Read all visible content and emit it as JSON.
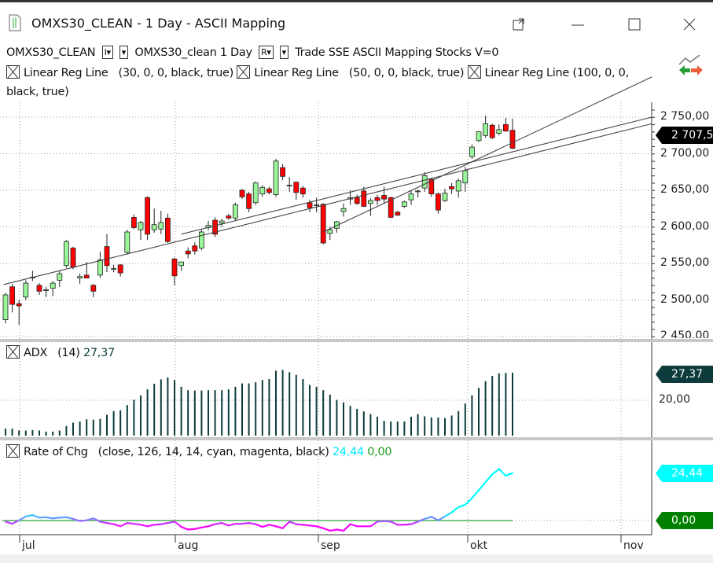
{
  "window": {
    "title": "OMXS30_CLEAN - 1 Day - ASCII Mapping",
    "popout_icon": "popout-icon",
    "minimize_icon": "minimize-icon",
    "maximize_icon": "maximize-icon",
    "close_icon": "close-icon"
  },
  "toolbar": {
    "symbol": "OMXS30_CLEAN",
    "dd1": "I▾",
    "dd2": "▾",
    "series": "OMXS30_clean",
    "period": "1 Day",
    "dd3": "R▾",
    "dd4": "▾",
    "info": "Trade  SSE  ASCII Mapping  Stocks  V=0"
  },
  "indicators": [
    {
      "label": "Linear Reg Line",
      "params": "(30,  0,  0,  black,  true)"
    },
    {
      "label": "Linear Reg Line",
      "params": "(50,  0,  0,  black,  true)"
    },
    {
      "label": "Linear Reg Line",
      "params": "(100,  0,  0,  black,  true)"
    }
  ],
  "adx": {
    "label": "ADX",
    "params": "(14)",
    "value": "27,37",
    "axis_label": "20,00",
    "tag": "27,37"
  },
  "roc": {
    "label": "Rate of Chg",
    "params": "(close,  126,  14,  14,  cyan,  magenta,  black)",
    "value1": "24,44",
    "value2": "0,00",
    "tag1": "24,44",
    "tag2": "0,00"
  },
  "price_tag": "2 707,50",
  "price_axis": [
    "2 750,00",
    "2 700,00",
    "2 650,00",
    "2 600,00",
    "2 550,00",
    "2 500,00",
    "2 450,00"
  ],
  "months": [
    "jul",
    "aug",
    "sep",
    "okt",
    "nov"
  ],
  "colors": {
    "up": "#98f598",
    "down": "#ff0000",
    "adx": "#0e3b3b",
    "roc_pos": "#00ffff",
    "roc_neg": "#ff00ff",
    "zero": "#4caf50",
    "price_tag": "#000000",
    "roc_tag": "#00ffff",
    "zero_tag": "#008000"
  },
  "chart_data": {
    "type": "candlestick",
    "title": "OMXS30_CLEAN - 1 Day",
    "price_levels": [
      2750,
      2700,
      2650,
      2600,
      2550,
      2500,
      2450
    ],
    "ylim": [
      2450,
      2800
    ],
    "last_close": 2707.5,
    "candles": [
      [
        2473,
        2510,
        2468,
        2507
      ],
      [
        2518,
        2522,
        2483,
        2494
      ],
      [
        2495,
        2500,
        2466,
        2492
      ],
      [
        2504,
        2527,
        2500,
        2523
      ],
      [
        2531,
        2540,
        2526,
        2531
      ],
      [
        2520,
        2523,
        2507,
        2512
      ],
      [
        2514,
        2518,
        2504,
        2514
      ],
      [
        2516,
        2526,
        2505,
        2523
      ],
      [
        2527,
        2540,
        2518,
        2536
      ],
      [
        2547,
        2582,
        2544,
        2580
      ],
      [
        2571,
        2573,
        2542,
        2545
      ],
      [
        2530,
        2536,
        2522,
        2532
      ],
      [
        2534,
        2552,
        2530,
        2530
      ],
      [
        2520,
        2522,
        2504,
        2512
      ],
      [
        2534,
        2566,
        2530,
        2555
      ],
      [
        2573,
        2590,
        2538,
        2547
      ],
      [
        2543,
        2548,
        2538,
        2543
      ],
      [
        2548,
        2549,
        2532,
        2537
      ],
      [
        2565,
        2596,
        2562,
        2593
      ],
      [
        2613,
        2617,
        2597,
        2599
      ],
      [
        2596,
        2608,
        2582,
        2606
      ],
      [
        2640,
        2642,
        2582,
        2590
      ],
      [
        2596,
        2625,
        2592,
        2603
      ],
      [
        2597,
        2622,
        2590,
        2606
      ],
      [
        2612,
        2618,
        2578,
        2580
      ],
      [
        2556,
        2558,
        2520,
        2533
      ],
      [
        2547,
        2552,
        2540,
        2552
      ],
      [
        2567,
        2572,
        2557,
        2563
      ],
      [
        2574,
        2579,
        2562,
        2567
      ],
      [
        2571,
        2596,
        2568,
        2593
      ],
      [
        2599,
        2608,
        2595,
        2602
      ],
      [
        2609,
        2613,
        2586,
        2590
      ],
      [
        2605,
        2611,
        2600,
        2608
      ],
      [
        2615,
        2618,
        2610,
        2612
      ],
      [
        2612,
        2633,
        2608,
        2630
      ],
      [
        2650,
        2652,
        2638,
        2641
      ],
      [
        2645,
        2648,
        2620,
        2625
      ],
      [
        2633,
        2662,
        2630,
        2660
      ],
      [
        2645,
        2657,
        2641,
        2654
      ],
      [
        2652,
        2655,
        2644,
        2647
      ],
      [
        2644,
        2693,
        2641,
        2690
      ],
      [
        2681,
        2686,
        2664,
        2669
      ],
      [
        2657,
        2668,
        2648,
        2657
      ],
      [
        2661,
        2662,
        2637,
        2647
      ],
      [
        2653,
        2656,
        2640,
        2645
      ],
      [
        2633,
        2637,
        2620,
        2626
      ],
      [
        2630,
        2640,
        2620,
        2630
      ],
      [
        2631,
        2632,
        2576,
        2578
      ],
      [
        2591,
        2600,
        2582,
        2596
      ],
      [
        2598,
        2608,
        2592,
        2607
      ],
      [
        2621,
        2632,
        2614,
        2625
      ],
      [
        2638,
        2650,
        2630,
        2640
      ],
      [
        2640,
        2644,
        2630,
        2632
      ],
      [
        2649,
        2655,
        2627,
        2628
      ],
      [
        2632,
        2639,
        2615,
        2636
      ],
      [
        2640,
        2644,
        2630,
        2636
      ],
      [
        2643,
        2655,
        2632,
        2638
      ],
      [
        2640,
        2641,
        2612,
        2613
      ],
      [
        2620,
        2622,
        2615,
        2616
      ],
      [
        2628,
        2636,
        2626,
        2634
      ],
      [
        2637,
        2650,
        2630,
        2645
      ],
      [
        2649,
        2651,
        2640,
        2649
      ],
      [
        2653,
        2675,
        2648,
        2670
      ],
      [
        2665,
        2667,
        2641,
        2645
      ],
      [
        2645,
        2647,
        2618,
        2623
      ],
      [
        2636,
        2652,
        2634,
        2646
      ],
      [
        2655,
        2660,
        2645,
        2652
      ],
      [
        2649,
        2666,
        2640,
        2663
      ],
      [
        2660,
        2682,
        2648,
        2677
      ],
      [
        2696,
        2713,
        2693,
        2709
      ],
      [
        2718,
        2731,
        2716,
        2730
      ],
      [
        2725,
        2752,
        2722,
        2741
      ],
      [
        2739,
        2741,
        2720,
        2722
      ],
      [
        2728,
        2740,
        2725,
        2733
      ],
      [
        2740,
        2749,
        2730,
        2731
      ],
      [
        2732,
        2748,
        2706,
        2707.5
      ]
    ],
    "regression_lines": [
      {
        "period": 30,
        "from": [
          47,
          2593
        ],
        "to": [
          95.6,
          2805
        ]
      },
      {
        "period": 50,
        "from": [
          26,
          2590
        ],
        "to": [
          95.6,
          2750
        ]
      },
      {
        "period": 100,
        "from": [
          -0.3,
          2521
        ],
        "to": [
          95.6,
          2741
        ]
      }
    ],
    "adx_series": [
      12.4,
      12.4,
      11.9,
      11.9,
      12.0,
      11.9,
      11.6,
      11.6,
      11.9,
      13.1,
      14.0,
      14.3,
      14.9,
      14.8,
      15.0,
      16.1,
      17.1,
      17.3,
      18.7,
      20.1,
      21.3,
      22.9,
      24.4,
      25.6,
      26.1,
      25.4,
      23.6,
      22.7,
      22.6,
      22.6,
      22.7,
      22.7,
      22.7,
      22.9,
      23.6,
      24.5,
      24.5,
      24.8,
      25.4,
      25.7,
      27.9,
      28.1,
      27.5,
      26.8,
      25.7,
      24.1,
      23.6,
      22.7,
      21.5,
      20.1,
      19.4,
      18.5,
      17.7,
      17.0,
      16.3,
      15.6,
      14.5,
      14.3,
      14.3,
      14.3,
      15.6,
      16.3,
      15.7,
      15.4,
      15.4,
      15.2,
      15.9,
      17.1,
      19.1,
      21.3,
      23.3,
      25.1,
      26.5,
      27.2,
      27.3,
      27.37
    ],
    "adx_ylim": [
      10.5,
      30
    ],
    "roc_series": [
      -0.7,
      -1.8,
      0,
      2.0,
      2.7,
      1.4,
      1.6,
      1.0,
      1.4,
      1.6,
      0.7,
      -0.4,
      0,
      1.0,
      -0.7,
      -1.4,
      -2.0,
      -3.1,
      -1.4,
      -1.8,
      -2.3,
      -3.1,
      -2.3,
      -2.0,
      -1.4,
      -0.7,
      -3.4,
      -4.8,
      -4.5,
      -3.7,
      -3.1,
      -2.0,
      -1.4,
      -2.7,
      -1.8,
      -1.8,
      -1.4,
      -2.0,
      -3.4,
      -2.3,
      -3.1,
      -4.1,
      -0.7,
      -2.0,
      -2.3,
      -2.7,
      -3.1,
      -4.1,
      -5.4,
      -4.8,
      -5.4,
      -2.0,
      -3.1,
      -3.1,
      -3.1,
      -0.7,
      -0.4,
      -0.7,
      -2.3,
      -2.3,
      -2.0,
      -0.7,
      0.7,
      1.8,
      0,
      2.0,
      4.1,
      6.8,
      8.1,
      11.5,
      15.6,
      19.7,
      23.8,
      26.5,
      23.1,
      24.44
    ],
    "roc_signal": 0.0,
    "x_ticks": [
      "jul",
      "aug",
      "sep",
      "okt",
      "nov"
    ]
  }
}
